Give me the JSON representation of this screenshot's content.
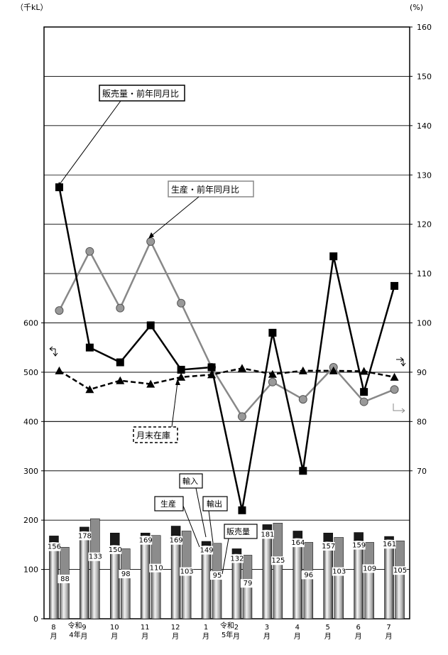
{
  "chart_data": {
    "type": "combo",
    "left_axis": {
      "unit_label": "（千kL）",
      "ticks": [
        "0",
        "100",
        "200",
        "300",
        "400",
        "500",
        "600"
      ],
      "ylim": [
        0,
        1200
      ]
    },
    "right_axis": {
      "unit_label": "(%)",
      "ticks": [
        "70",
        "80",
        "90",
        "100",
        "110",
        "120",
        "130",
        "140",
        "150",
        "160"
      ],
      "ylim": [
        40,
        160
      ]
    },
    "months": [
      "8\n月",
      "9\n月",
      "10\n月",
      "11\n月",
      "12\n月",
      "1\n月",
      "2\n月",
      "3\n月",
      "4\n月",
      "5\n月",
      "6\n月",
      "7\n月"
    ],
    "era_labels": [
      "令和\n4年",
      "令和\n5年"
    ],
    "bar_series": [
      {
        "name": "生産",
        "values": [
          156,
          178,
          150,
          169,
          169,
          149,
          132,
          181,
          164,
          157,
          159,
          161
        ],
        "total": [
          168,
          186,
          174,
          174,
          188,
          157,
          142,
          191,
          178,
          174,
          175,
          167
        ]
      },
      {
        "name": "輸入",
        "values": [
          0,
          0,
          0,
          0,
          0,
          0,
          0,
          0,
          0,
          0,
          0,
          0
        ]
      },
      {
        "name": "輸出",
        "values": [
          0,
          0,
          0,
          0,
          0,
          0,
          0,
          0,
          0,
          0,
          0,
          0
        ]
      },
      {
        "name": "販売量",
        "values": [
          88,
          133,
          98,
          110,
          103,
          95,
          79,
          125,
          96,
          103,
          109,
          105
        ],
        "total": [
          145,
          203,
          142,
          169,
          178,
          153,
          129,
          194,
          155,
          165,
          155,
          158
        ]
      }
    ],
    "line_series": [
      {
        "name": "販売量・前年同月比",
        "axis": "right",
        "values": [
          127.5,
          95.0,
          92.0,
          99.5,
          90.5,
          91.0,
          62.0,
          98.0,
          70.0,
          113.5,
          86.0,
          107.5
        ]
      },
      {
        "name": "生産・前年同月比",
        "axis": "right",
        "values": [
          102.5,
          114.5,
          103.0,
          116.5,
          104.0,
          91.0,
          81.0,
          88.0,
          84.5,
          91.0,
          84.0,
          86.5
        ]
      },
      {
        "name": "月末在庫",
        "axis": "left",
        "values": [
          503,
          465,
          483,
          476,
          490,
          495,
          508,
          496,
          503,
          503,
          502,
          490
        ]
      }
    ],
    "callouts": [
      "販売量・前年同月比",
      "生産・前年同月比",
      "月末在庫",
      "輸入",
      "生産",
      "輸出",
      "販売量"
    ]
  }
}
